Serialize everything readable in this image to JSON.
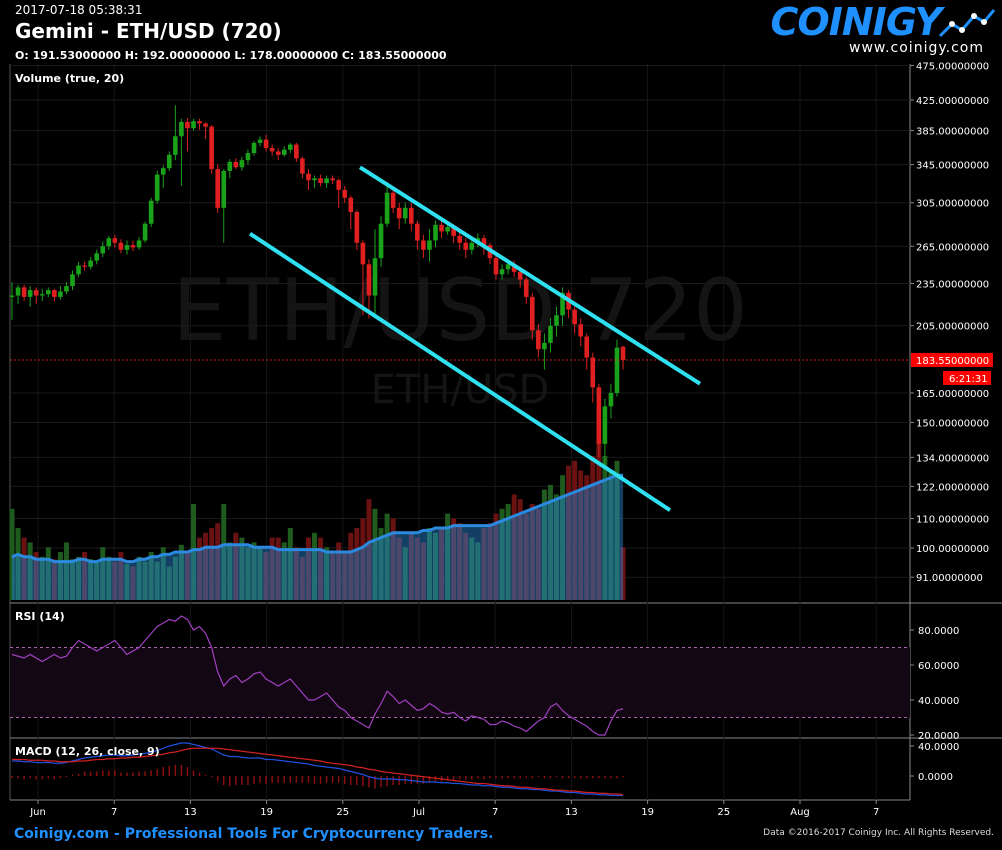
{
  "header": {
    "timestamp": "2017-07-18 05:38:31",
    "title": "Gemini - ETH/USD (720)",
    "ohlc": "O: 191.53000000 H: 192.00000000 L: 178.00000000 C: 183.55000000"
  },
  "logo": {
    "name": "COINIGY",
    "url": "www.coinigy.com"
  },
  "watermark": {
    "big": "ETH/USD 720",
    "small": "ETH/USD"
  },
  "footer": {
    "left": "Coinigy.com - Professional Tools For Cryptocurrency Traders.",
    "right": "Data ©2016-2017 Coinigy Inc. All Rights Reserved."
  },
  "colors": {
    "up": "#1aa31a",
    "down": "#e02020",
    "volume_ma": "#1e7fd0",
    "trend": "#2ee0f0",
    "rsi": "#a040c0",
    "macd": "#2050e0",
    "signal": "#d02020",
    "price_label": "#ff0000"
  },
  "chart_data": [
    {
      "type": "candlestick",
      "title": "Gemini - ETH/USD (720)",
      "y_scale": "log",
      "y_ticks": [
        "475.00000000",
        "425.00000000",
        "385.00000000",
        "345.00000000",
        "305.00000000",
        "265.00000000",
        "235.00000000",
        "205.00000000",
        "165.00000000",
        "150.00000000",
        "134.00000000",
        "122.00000000",
        "110.00000000",
        "100.00000000",
        "91.00000000"
      ],
      "x_ticks": [
        "Jun",
        "7",
        "13",
        "19",
        "25",
        "Jul",
        "7",
        "13",
        "19",
        "25",
        "Aug",
        "7"
      ],
      "last_price": "183.55000000",
      "countdown": "6:21:31",
      "candles": [
        {
          "o": 225,
          "c": 226,
          "h": 236,
          "l": 209
        },
        {
          "o": 226,
          "c": 232,
          "h": 234,
          "l": 220
        },
        {
          "o": 232,
          "c": 225,
          "h": 234,
          "l": 222
        },
        {
          "o": 225,
          "c": 230,
          "h": 233,
          "l": 218
        },
        {
          "o": 230,
          "c": 226,
          "h": 232,
          "l": 220
        },
        {
          "o": 226,
          "c": 227,
          "h": 231,
          "l": 222
        },
        {
          "o": 227,
          "c": 230,
          "h": 232,
          "l": 225
        },
        {
          "o": 230,
          "c": 225,
          "h": 231,
          "l": 222
        },
        {
          "o": 225,
          "c": 229,
          "h": 233,
          "l": 223
        },
        {
          "o": 229,
          "c": 233,
          "h": 236,
          "l": 227
        },
        {
          "o": 233,
          "c": 242,
          "h": 245,
          "l": 230
        },
        {
          "o": 242,
          "c": 249,
          "h": 252,
          "l": 240
        },
        {
          "o": 249,
          "c": 248,
          "h": 252,
          "l": 245
        },
        {
          "o": 248,
          "c": 253,
          "h": 256,
          "l": 246
        },
        {
          "o": 253,
          "c": 259,
          "h": 262,
          "l": 250
        },
        {
          "o": 259,
          "c": 265,
          "h": 269,
          "l": 256
        },
        {
          "o": 265,
          "c": 272,
          "h": 274,
          "l": 262
        },
        {
          "o": 272,
          "c": 268,
          "h": 275,
          "l": 264
        },
        {
          "o": 268,
          "c": 262,
          "h": 271,
          "l": 259
        },
        {
          "o": 262,
          "c": 266,
          "h": 270,
          "l": 258
        },
        {
          "o": 266,
          "c": 264,
          "h": 270,
          "l": 261
        },
        {
          "o": 264,
          "c": 270,
          "h": 273,
          "l": 262
        },
        {
          "o": 270,
          "c": 285,
          "h": 287,
          "l": 268
        },
        {
          "o": 285,
          "c": 307,
          "h": 310,
          "l": 282
        },
        {
          "o": 307,
          "c": 334,
          "h": 338,
          "l": 304
        },
        {
          "o": 334,
          "c": 341,
          "h": 344,
          "l": 320
        },
        {
          "o": 341,
          "c": 356,
          "h": 360,
          "l": 338
        },
        {
          "o": 356,
          "c": 378,
          "h": 418,
          "l": 350
        },
        {
          "o": 378,
          "c": 396,
          "h": 400,
          "l": 322
        },
        {
          "o": 396,
          "c": 388,
          "h": 401,
          "l": 360
        },
        {
          "o": 388,
          "c": 397,
          "h": 400,
          "l": 385
        },
        {
          "o": 397,
          "c": 394,
          "h": 400,
          "l": 386
        },
        {
          "o": 394,
          "c": 390,
          "h": 395,
          "l": 375
        },
        {
          "o": 390,
          "c": 340,
          "h": 392,
          "l": 335
        },
        {
          "o": 340,
          "c": 300,
          "h": 345,
          "l": 295
        },
        {
          "o": 300,
          "c": 338,
          "h": 340,
          "l": 268
        },
        {
          "o": 338,
          "c": 348,
          "h": 351,
          "l": 330
        },
        {
          "o": 348,
          "c": 342,
          "h": 352,
          "l": 340
        },
        {
          "o": 342,
          "c": 350,
          "h": 354,
          "l": 338
        },
        {
          "o": 350,
          "c": 358,
          "h": 362,
          "l": 345
        },
        {
          "o": 358,
          "c": 370,
          "h": 372,
          "l": 355
        },
        {
          "o": 370,
          "c": 374,
          "h": 378,
          "l": 366
        },
        {
          "o": 374,
          "c": 364,
          "h": 380,
          "l": 360
        },
        {
          "o": 364,
          "c": 360,
          "h": 368,
          "l": 355
        },
        {
          "o": 360,
          "c": 356,
          "h": 364,
          "l": 350
        },
        {
          "o": 356,
          "c": 362,
          "h": 366,
          "l": 354
        },
        {
          "o": 362,
          "c": 368,
          "h": 370,
          "l": 358
        },
        {
          "o": 368,
          "c": 352,
          "h": 370,
          "l": 348
        },
        {
          "o": 352,
          "c": 335,
          "h": 354,
          "l": 330
        },
        {
          "o": 335,
          "c": 328,
          "h": 340,
          "l": 318
        },
        {
          "o": 328,
          "c": 330,
          "h": 333,
          "l": 320
        },
        {
          "o": 330,
          "c": 325,
          "h": 334,
          "l": 322
        },
        {
          "o": 325,
          "c": 330,
          "h": 333,
          "l": 320
        },
        {
          "o": 330,
          "c": 328,
          "h": 333,
          "l": 324
        },
        {
          "o": 328,
          "c": 318,
          "h": 330,
          "l": 300
        },
        {
          "o": 318,
          "c": 310,
          "h": 322,
          "l": 305
        },
        {
          "o": 310,
          "c": 296,
          "h": 312,
          "l": 280
        },
        {
          "o": 296,
          "c": 268,
          "h": 298,
          "l": 262
        },
        {
          "o": 268,
          "c": 250,
          "h": 270,
          "l": 212
        },
        {
          "o": 250,
          "c": 226,
          "h": 254,
          "l": 210
        },
        {
          "o": 226,
          "c": 255,
          "h": 280,
          "l": 210
        },
        {
          "o": 255,
          "c": 285,
          "h": 292,
          "l": 248
        },
        {
          "o": 285,
          "c": 315,
          "h": 322,
          "l": 282
        },
        {
          "o": 315,
          "c": 300,
          "h": 320,
          "l": 295
        },
        {
          "o": 300,
          "c": 290,
          "h": 305,
          "l": 280
        },
        {
          "o": 290,
          "c": 300,
          "h": 305,
          "l": 285
        },
        {
          "o": 300,
          "c": 285,
          "h": 305,
          "l": 278
        },
        {
          "o": 285,
          "c": 270,
          "h": 288,
          "l": 262
        },
        {
          "o": 270,
          "c": 262,
          "h": 275,
          "l": 255
        },
        {
          "o": 262,
          "c": 270,
          "h": 280,
          "l": 252
        },
        {
          "o": 270,
          "c": 284,
          "h": 288,
          "l": 264
        },
        {
          "o": 284,
          "c": 278,
          "h": 288,
          "l": 272
        },
        {
          "o": 278,
          "c": 282,
          "h": 286,
          "l": 275
        },
        {
          "o": 282,
          "c": 274,
          "h": 285,
          "l": 268
        },
        {
          "o": 274,
          "c": 268,
          "h": 278,
          "l": 262
        },
        {
          "o": 268,
          "c": 262,
          "h": 272,
          "l": 255
        },
        {
          "o": 262,
          "c": 268,
          "h": 272,
          "l": 258
        },
        {
          "o": 268,
          "c": 272,
          "h": 276,
          "l": 264
        },
        {
          "o": 272,
          "c": 266,
          "h": 275,
          "l": 258
        },
        {
          "o": 266,
          "c": 255,
          "h": 268,
          "l": 250
        },
        {
          "o": 255,
          "c": 242,
          "h": 258,
          "l": 238
        },
        {
          "o": 242,
          "c": 246,
          "h": 250,
          "l": 238
        },
        {
          "o": 246,
          "c": 250,
          "h": 254,
          "l": 242
        },
        {
          "o": 250,
          "c": 244,
          "h": 253,
          "l": 240
        },
        {
          "o": 244,
          "c": 238,
          "h": 248,
          "l": 232
        },
        {
          "o": 238,
          "c": 225,
          "h": 240,
          "l": 220
        },
        {
          "o": 225,
          "c": 202,
          "h": 228,
          "l": 196
        },
        {
          "o": 202,
          "c": 190,
          "h": 206,
          "l": 185
        },
        {
          "o": 190,
          "c": 194,
          "h": 200,
          "l": 178
        },
        {
          "o": 194,
          "c": 205,
          "h": 210,
          "l": 188
        },
        {
          "o": 205,
          "c": 212,
          "h": 218,
          "l": 198
        },
        {
          "o": 212,
          "c": 228,
          "h": 232,
          "l": 205
        },
        {
          "o": 228,
          "c": 216,
          "h": 230,
          "l": 210
        },
        {
          "o": 216,
          "c": 206,
          "h": 218,
          "l": 200
        },
        {
          "o": 206,
          "c": 198,
          "h": 210,
          "l": 192
        },
        {
          "o": 198,
          "c": 185,
          "h": 200,
          "l": 178
        },
        {
          "o": 185,
          "c": 168,
          "h": 188,
          "l": 160
        },
        {
          "o": 168,
          "c": 140,
          "h": 170,
          "l": 134
        },
        {
          "o": 140,
          "c": 158,
          "h": 162,
          "l": 130
        },
        {
          "o": 158,
          "c": 165,
          "h": 170,
          "l": 152
        },
        {
          "o": 165,
          "c": 191,
          "h": 196,
          "l": 163
        },
        {
          "o": 191.53,
          "c": 183.55,
          "h": 192,
          "l": 178
        }
      ],
      "trend_lines": [
        {
          "t1": 0.24,
          "p1": 276,
          "t2": 0.66,
          "p2": 113
        },
        {
          "t1": 0.35,
          "p1": 342,
          "t2": 0.69,
          "p2": 170
        }
      ]
    },
    {
      "type": "bar",
      "title": "Volume (true, 20)",
      "series_note": "volume bars with moving-average area",
      "values": [
        38,
        30,
        26,
        24,
        20,
        18,
        22,
        17,
        20,
        24,
        17,
        18,
        20,
        17,
        16,
        22,
        18,
        16,
        20,
        15,
        14,
        18,
        16,
        20,
        16,
        22,
        14,
        18,
        23,
        20,
        40,
        26,
        28,
        30,
        32,
        40,
        24,
        28,
        26,
        22,
        24,
        22,
        20,
        26,
        26,
        24,
        30,
        22,
        18,
        26,
        28,
        26,
        22,
        20,
        24,
        20,
        28,
        30,
        34,
        42,
        38,
        30,
        36,
        34,
        26,
        22,
        28,
        26,
        24,
        30,
        28,
        30,
        36,
        34,
        32,
        28,
        26,
        24,
        30,
        32,
        36,
        38,
        40,
        44,
        42,
        36,
        40,
        38,
        46,
        48,
        44,
        52,
        56,
        58,
        54,
        52,
        60,
        66,
        60,
        54,
        58,
        22
      ],
      "ma": [
        18,
        19,
        18,
        18,
        17,
        17,
        17,
        16,
        16,
        16,
        16,
        17,
        17,
        16,
        16,
        17,
        17,
        17,
        17,
        16,
        16,
        17,
        17,
        18,
        18,
        19,
        19,
        20,
        20,
        20,
        21,
        21,
        22,
        22,
        22,
        23,
        23,
        23,
        23,
        23,
        22,
        22,
        22,
        22,
        21,
        21,
        21,
        21,
        21,
        21,
        21,
        21,
        20,
        20,
        20,
        20,
        20,
        21,
        22,
        24,
        25,
        26,
        27,
        28,
        28,
        28,
        28,
        28,
        29,
        29,
        30,
        30,
        30,
        31,
        31,
        31,
        31,
        31,
        31,
        31,
        32,
        33,
        34,
        35,
        36,
        37,
        38,
        39,
        40,
        41,
        42,
        43,
        44,
        45,
        46,
        47,
        48,
        49,
        50,
        51,
        52,
        52
      ]
    },
    {
      "type": "line",
      "title": "RSI (14)",
      "y_ticks": [
        "80.0000",
        "60.0000",
        "40.0000",
        "20.0000"
      ],
      "bands": [
        70,
        30
      ],
      "values": [
        66,
        65,
        64,
        66,
        64,
        62,
        64,
        66,
        64,
        65,
        70,
        74,
        72,
        70,
        68,
        70,
        72,
        74,
        70,
        66,
        68,
        70,
        74,
        78,
        82,
        84,
        86,
        85,
        88,
        86,
        80,
        82,
        78,
        70,
        56,
        48,
        52,
        54,
        50,
        52,
        55,
        56,
        52,
        50,
        48,
        50,
        52,
        48,
        44,
        40,
        40,
        42,
        44,
        40,
        36,
        34,
        30,
        28,
        26,
        24,
        32,
        38,
        45,
        42,
        38,
        40,
        37,
        34,
        35,
        38,
        36,
        33,
        32,
        33,
        30,
        28,
        31,
        30,
        29,
        26,
        26,
        28,
        27,
        25,
        24,
        22,
        25,
        28,
        30,
        36,
        38,
        34,
        31,
        29,
        27,
        25,
        22,
        20,
        20,
        28,
        34,
        35
      ]
    },
    {
      "type": "line",
      "title": "MACD (12, 26, close, 9)",
      "y_ticks": [
        "40.0000",
        "0.0000"
      ],
      "macd": [
        20,
        20,
        19,
        19,
        18,
        18,
        18,
        17,
        17,
        18,
        20,
        22,
        24,
        25,
        26,
        27,
        28,
        28,
        27,
        27,
        28,
        29,
        30,
        32,
        34,
        37,
        40,
        42,
        44,
        44,
        42,
        40,
        38,
        36,
        32,
        28,
        26,
        26,
        25,
        24,
        24,
        24,
        22,
        22,
        21,
        20,
        19,
        18,
        17,
        16,
        14,
        13,
        12,
        11,
        10,
        8,
        6,
        4,
        2,
        -1,
        -3,
        -4,
        -4,
        -4,
        -5,
        -5,
        -6,
        -7,
        -8,
        -8,
        -8,
        -9,
        -9,
        -10,
        -10,
        -11,
        -12,
        -12,
        -13,
        -13,
        -14,
        -15,
        -15,
        -16,
        -17,
        -17,
        -18,
        -18,
        -19,
        -20,
        -20,
        -21,
        -22,
        -22,
        -23,
        -24,
        -24,
        -25,
        -25,
        -26,
        -26,
        -26
      ],
      "signal": [
        22,
        22,
        22,
        21,
        21,
        21,
        20,
        20,
        19,
        19,
        19,
        20,
        20,
        21,
        22,
        22,
        23,
        23,
        24,
        24,
        25,
        25,
        26,
        27,
        28,
        29,
        31,
        32,
        34,
        36,
        37,
        37,
        37,
        37,
        37,
        36,
        35,
        34,
        33,
        32,
        31,
        30,
        29,
        28,
        27,
        26,
        25,
        24,
        23,
        22,
        21,
        20,
        18,
        17,
        16,
        15,
        14,
        12,
        11,
        9,
        8,
        6,
        5,
        4,
        3,
        2,
        1,
        0,
        -1,
        -2,
        -3,
        -4,
        -5,
        -6,
        -7,
        -8,
        -9,
        -10,
        -10,
        -11,
        -12,
        -13,
        -13,
        -14,
        -15,
        -15,
        -16,
        -17,
        -17,
        -18,
        -19,
        -19,
        -20,
        -20,
        -21,
        -22,
        -22,
        -23,
        -23,
        -24,
        -24,
        -25
      ]
    }
  ]
}
